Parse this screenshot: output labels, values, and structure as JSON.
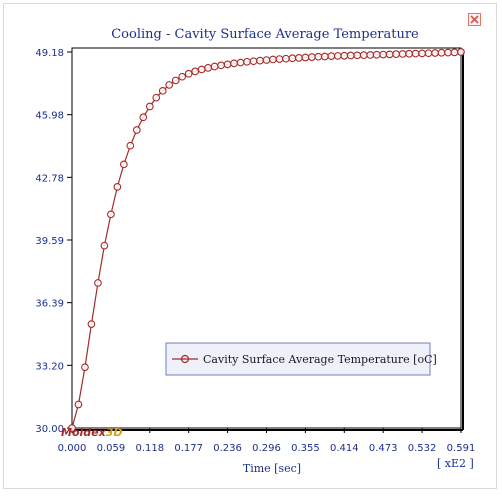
{
  "window": {
    "close_icon": "close-icon"
  },
  "chart_data": {
    "type": "line",
    "title": "Cooling - Cavity Surface Average Temperature",
    "xlabel": "Time [sec]",
    "ylabel": "",
    "x_multiplier_label": "[ xE2 ]",
    "x_ticks": [
      "0.000",
      "0.059",
      "0.118",
      "0.177",
      "0.236",
      "0.296",
      "0.355",
      "0.414",
      "0.473",
      "0.532",
      "0.591"
    ],
    "y_ticks": [
      "30.00",
      "33.20",
      "36.39",
      "39.59",
      "42.78",
      "45.98",
      "49.18"
    ],
    "xlim": [
      0,
      0.591
    ],
    "ylim": [
      30.0,
      49.18
    ],
    "grid": false,
    "legend": "center-right",
    "series": [
      {
        "name": "Cavity Surface Average Temperature [oC]",
        "color": "#a52a2a",
        "x": [
          0.0,
          0.0098,
          0.0197,
          0.0295,
          0.0394,
          0.0492,
          0.0591,
          0.0689,
          0.0788,
          0.0886,
          0.0985,
          0.1083,
          0.1182,
          0.128,
          0.1379,
          0.1477,
          0.1576,
          0.1674,
          0.1773,
          0.1871,
          0.197,
          0.2068,
          0.2167,
          0.2265,
          0.2364,
          0.2462,
          0.2561,
          0.2659,
          0.2758,
          0.2856,
          0.2955,
          0.3053,
          0.3152,
          0.325,
          0.3349,
          0.3447,
          0.3546,
          0.3644,
          0.3743,
          0.3841,
          0.394,
          0.4038,
          0.4137,
          0.4235,
          0.4334,
          0.4432,
          0.4531,
          0.4629,
          0.4728,
          0.4826,
          0.4925,
          0.5023,
          0.5122,
          0.522,
          0.5319,
          0.5417,
          0.5516,
          0.5614,
          0.5713,
          0.5811,
          0.591
        ],
        "values": [
          30.0,
          31.2,
          33.1,
          35.3,
          37.4,
          39.3,
          40.9,
          42.3,
          43.45,
          44.4,
          45.2,
          45.85,
          46.4,
          46.85,
          47.2,
          47.5,
          47.73,
          47.92,
          48.07,
          48.19,
          48.29,
          48.37,
          48.44,
          48.5,
          48.55,
          48.6,
          48.64,
          48.68,
          48.71,
          48.74,
          48.77,
          48.8,
          48.82,
          48.84,
          48.86,
          48.88,
          48.9,
          48.92,
          48.94,
          48.95,
          48.97,
          48.98,
          48.99,
          49.0,
          49.01,
          49.02,
          49.03,
          49.04,
          49.05,
          49.06,
          49.07,
          49.08,
          49.09,
          49.1,
          49.11,
          49.12,
          49.13,
          49.14,
          49.15,
          49.16,
          49.18
        ]
      }
    ]
  },
  "watermark": {
    "text": "Moldex3D"
  }
}
